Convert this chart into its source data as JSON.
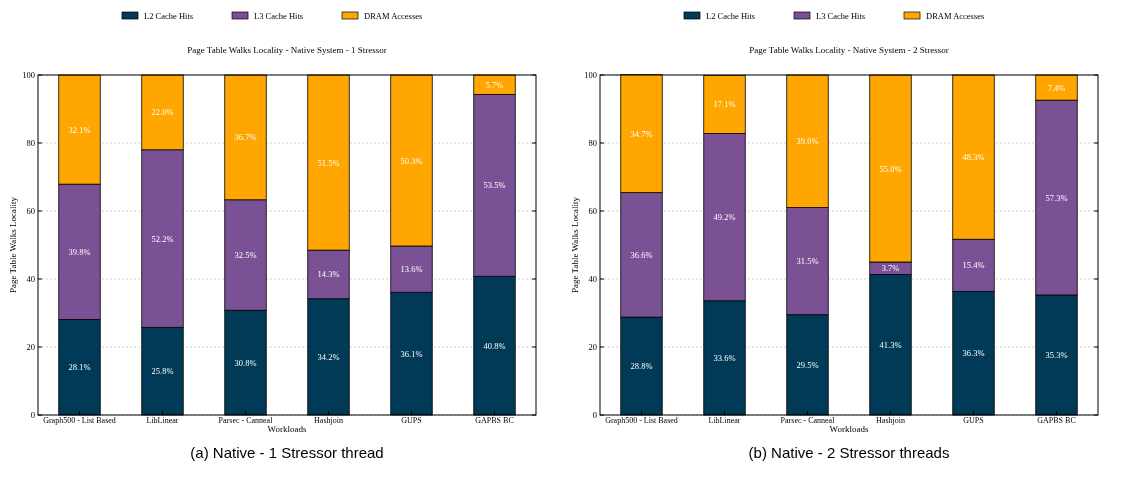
{
  "chart_data": [
    {
      "type": "bar",
      "title": "Page Table Walks Locality - Native System - 1 Stressor",
      "xlabel": "Workloads",
      "ylabel": "Page Table Walks Locality",
      "annotations": [
        "(a) Native - 1 Stressor thread"
      ],
      "categories": [
        "Graph500 - List Based",
        "LibLinear",
        "Parsec - Canneal",
        "Hashjoin",
        "GUPS",
        "GAPBS BC"
      ],
      "stacked": true,
      "ylim": [
        0,
        100
      ],
      "yticks": [
        0,
        20,
        40,
        60,
        80,
        100
      ],
      "grid": "y",
      "legend": "top",
      "series": [
        {
          "name": "L2 Cache Hits",
          "color": "#003a57",
          "values": [
            28.1,
            25.8,
            30.8,
            34.2,
            36.1,
            40.8
          ],
          "value_labels": [
            "28.1%",
            "25.8%",
            "30.8%",
            "34.2%",
            "36.1%",
            "40.8%"
          ]
        },
        {
          "name": "L3 Cache Hits",
          "color": "#7a5195",
          "values": [
            39.8,
            52.2,
            32.5,
            14.3,
            13.6,
            53.5
          ],
          "value_labels": [
            "39.8%",
            "52.2%",
            "32.5%",
            "14.3%",
            "13.6%",
            "53.5%"
          ]
        },
        {
          "name": "DRAM Accesses",
          "color": "#ffa600",
          "values": [
            32.1,
            22.0,
            36.7,
            51.5,
            50.3,
            5.7
          ],
          "value_labels": [
            "32.1%",
            "22.0%",
            "36.7%",
            "51.5%",
            "50.3%",
            "5.7%"
          ]
        }
      ]
    },
    {
      "type": "bar",
      "title": "Page Table Walks Locality - Native System - 2 Stressor",
      "xlabel": "Workloads",
      "ylabel": "Page Table Walks Locality",
      "annotations": [
        "(b) Native - 2 Stressor threads"
      ],
      "categories": [
        "Graph500 - List Based",
        "LibLinear",
        "Parsec - Canneal",
        "Hashjoin",
        "GUPS",
        "GAPBS BC"
      ],
      "stacked": true,
      "ylim": [
        0,
        100
      ],
      "yticks": [
        0,
        20,
        40,
        60,
        80,
        100
      ],
      "grid": "y",
      "legend": "top",
      "series": [
        {
          "name": "L2 Cache Hits",
          "color": "#003a57",
          "values": [
            28.8,
            33.6,
            29.5,
            41.3,
            36.3,
            35.3
          ],
          "value_labels": [
            "28.8%",
            "33.6%",
            "29.5%",
            "41.3%",
            "36.3%",
            "35.3%"
          ]
        },
        {
          "name": "L3 Cache Hits",
          "color": "#7a5195",
          "values": [
            36.6,
            49.2,
            31.5,
            3.7,
            15.4,
            57.3
          ],
          "value_labels": [
            "36.6%",
            "49.2%",
            "31.5%",
            "3.7%",
            "15.4%",
            "57.3%"
          ]
        },
        {
          "name": "DRAM Accesses",
          "color": "#ffa600",
          "values": [
            34.7,
            17.1,
            39.0,
            55.0,
            48.3,
            7.4
          ],
          "value_labels": [
            "34.7%",
            "17.1%",
            "39.0%",
            "55.0%",
            "48.3%",
            "7.4%"
          ]
        }
      ]
    }
  ]
}
